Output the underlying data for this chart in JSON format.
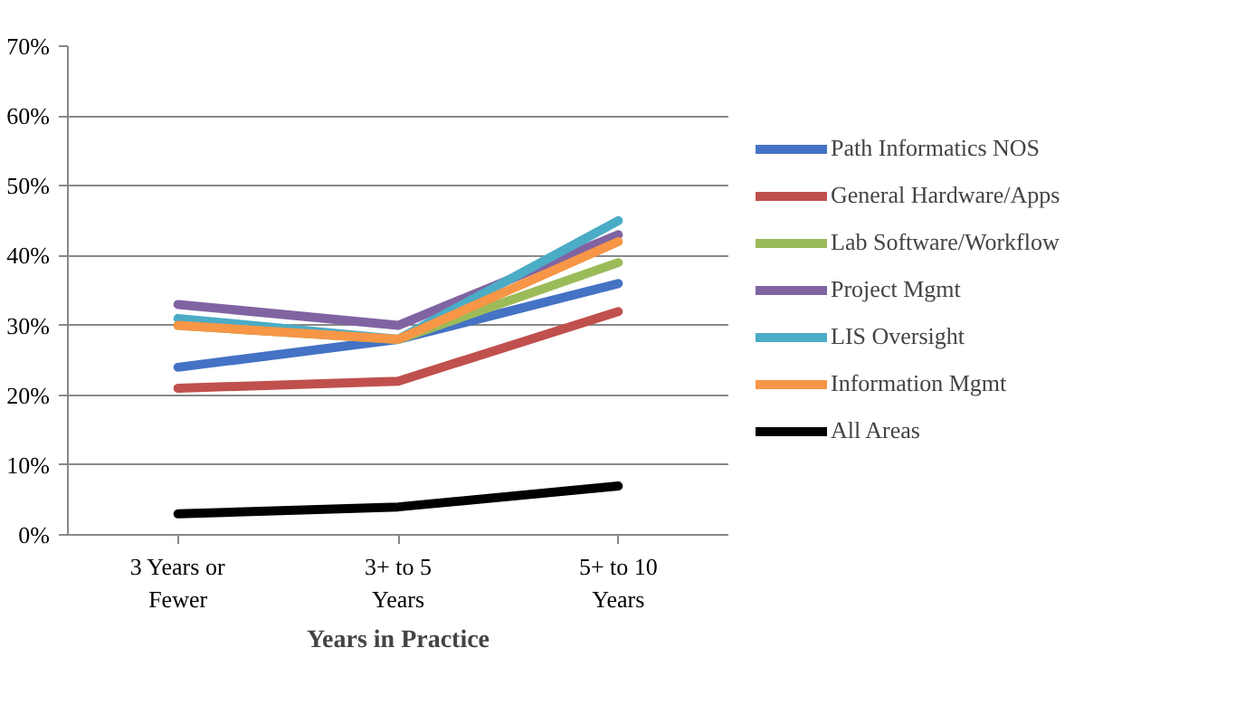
{
  "chart_data": {
    "type": "line",
    "xlabel": "Years in Practice",
    "categories": [
      "3 Years or Fewer",
      "3+ to 5 Years",
      "5+ to 10 Years"
    ],
    "series": [
      {
        "name": "Path Informatics NOS",
        "color": "#4472c4",
        "values": [
          24,
          28,
          36
        ]
      },
      {
        "name": "General Hardware/Apps",
        "color": "#c0504d",
        "values": [
          21,
          22,
          32
        ]
      },
      {
        "name": "Lab Software/Workflow",
        "color": "#9bbb59",
        "values": [
          30,
          28,
          39
        ]
      },
      {
        "name": "Project Mgmt",
        "color": "#8064a2",
        "values": [
          33,
          30,
          43
        ]
      },
      {
        "name": "LIS Oversight",
        "color": "#4bacc6",
        "values": [
          31,
          28,
          45
        ]
      },
      {
        "name": "Information Mgmt",
        "color": "#f79646",
        "values": [
          30,
          28,
          42
        ]
      },
      {
        "name": "All Areas",
        "color": "#000000",
        "values": [
          3,
          4,
          7
        ]
      }
    ],
    "ylim": [
      0,
      70
    ],
    "yticks": [
      {
        "value": 0,
        "label": "0%"
      },
      {
        "value": 10,
        "label": "10%"
      },
      {
        "value": 20,
        "label": "20%"
      },
      {
        "value": 30,
        "label": "30%"
      },
      {
        "value": 40,
        "label": "40%"
      },
      {
        "value": 50,
        "label": "50%"
      },
      {
        "value": 60,
        "label": "60%"
      },
      {
        "value": 70,
        "label": "70%"
      }
    ],
    "grid": "y",
    "legend": "right",
    "marker": "none",
    "line_style": "solid"
  }
}
